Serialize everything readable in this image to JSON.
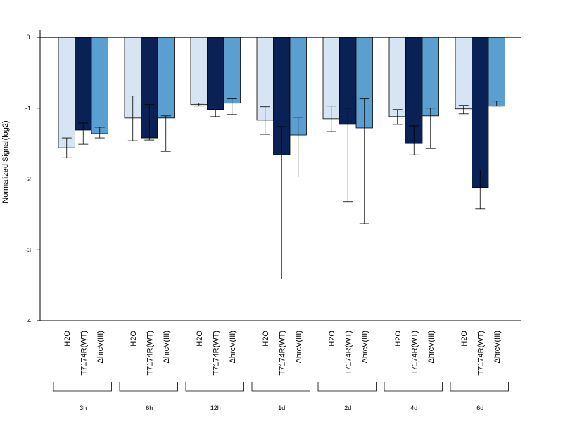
{
  "chart_data": {
    "type": "bar",
    "ylabel": "Normalized Signal(log2)",
    "ylim": [
      -4,
      0
    ],
    "yticks": [
      "0",
      "-1",
      "-2",
      "-3",
      "-4"
    ],
    "ytick_values": [
      0,
      -1,
      -2,
      -3,
      -4
    ],
    "grid": false,
    "groups": [
      {
        "label": "3h",
        "bars": [
          {
            "name": "H2O",
            "value": -1.56,
            "err_low": -1.7,
            "err_high": -1.42
          },
          {
            "name": "T7174R(WT)",
            "value": -1.31,
            "err_low": -1.51,
            "err_high": -1.21
          },
          {
            "name": "ΔhrcV(III)",
            "value": -1.36,
            "err_low": -1.42,
            "err_high": -1.27
          }
        ]
      },
      {
        "label": "6h",
        "bars": [
          {
            "name": "H2O",
            "value": -1.14,
            "err_low": -1.46,
            "err_high": -0.83
          },
          {
            "name": "T7174R(WT)",
            "value": -1.42,
            "err_low": -1.45,
            "err_high": -0.95
          },
          {
            "name": "ΔhrcV(III)",
            "value": -1.14,
            "err_low": -1.61,
            "err_high": -1.11
          }
        ]
      },
      {
        "label": "12h",
        "bars": [
          {
            "name": "H2O",
            "value": -0.95,
            "err_low": -0.97,
            "err_high": -0.93
          },
          {
            "name": "T7174R(WT)",
            "value": -1.02,
            "err_low": -1.12,
            "err_high": -1.02
          },
          {
            "name": "ΔhrcV(III)",
            "value": -0.93,
            "err_low": -1.09,
            "err_high": -0.87
          }
        ]
      },
      {
        "label": "1d",
        "bars": [
          {
            "name": "H2O",
            "value": -1.17,
            "err_low": -1.37,
            "err_high": -0.98
          },
          {
            "name": "T7174R(WT)",
            "value": -1.66,
            "err_low": -3.41,
            "err_high": -1.26
          },
          {
            "name": "ΔhrcV(III)",
            "value": -1.38,
            "err_low": -1.97,
            "err_high": -1.13
          }
        ]
      },
      {
        "label": "2d",
        "bars": [
          {
            "name": "H2O",
            "value": -1.15,
            "err_low": -1.33,
            "err_high": -0.97
          },
          {
            "name": "T7174R(WT)",
            "value": -1.23,
            "err_low": -2.32,
            "err_high": -1.0
          },
          {
            "name": "ΔhrcV(III)",
            "value": -1.28,
            "err_low": -2.63,
            "err_high": -0.87
          }
        ]
      },
      {
        "label": "4d",
        "bars": [
          {
            "name": "H2O",
            "value": -1.12,
            "err_low": -1.23,
            "err_high": -1.02
          },
          {
            "name": "T7174R(WT)",
            "value": -1.5,
            "err_low": -1.66,
            "err_high": -1.25
          },
          {
            "name": "ΔhrcV(III)",
            "value": -1.11,
            "err_low": -1.57,
            "err_high": -1.0
          }
        ]
      },
      {
        "label": "6d",
        "bars": [
          {
            "name": "H2O",
            "value": -1.01,
            "err_low": -1.08,
            "err_high": -0.96
          },
          {
            "name": "T7174R(WT)",
            "value": -2.12,
            "err_low": -2.42,
            "err_high": -1.87
          },
          {
            "name": "ΔhrcV(III)",
            "value": -0.97,
            "err_low": -0.97,
            "err_high": -0.9
          }
        ]
      }
    ],
    "colors": {
      "H2O": "#d6e4f3",
      "T7174R(WT)": "#0a2155",
      "ΔhrcV(III)": "#5a9fcf",
      "axis": "#000000",
      "bar_edge": "#000000"
    }
  }
}
